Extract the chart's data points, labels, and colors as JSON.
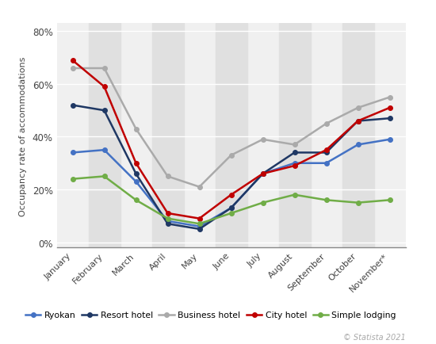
{
  "months": [
    "January",
    "February",
    "March",
    "April",
    "May",
    "June",
    "July",
    "August",
    "September",
    "October",
    "November*"
  ],
  "series": {
    "Ryokan": [
      0.34,
      0.35,
      0.23,
      0.08,
      0.06,
      0.13,
      0.26,
      0.3,
      0.3,
      0.37,
      0.39
    ],
    "Resort hotel": [
      0.52,
      0.5,
      0.26,
      0.07,
      0.05,
      0.13,
      0.26,
      0.34,
      0.34,
      0.46,
      0.47
    ],
    "Business hotel": [
      0.66,
      0.66,
      0.43,
      0.25,
      0.21,
      0.33,
      0.39,
      0.37,
      0.45,
      0.51,
      0.55
    ],
    "City hotel": [
      0.69,
      0.59,
      0.3,
      0.11,
      0.09,
      0.18,
      0.26,
      0.29,
      0.35,
      0.46,
      0.51
    ],
    "Simple lodging": [
      0.24,
      0.25,
      0.16,
      0.09,
      0.07,
      0.11,
      0.15,
      0.18,
      0.16,
      0.15,
      0.16
    ]
  },
  "colors": {
    "Ryokan": "#4472C4",
    "Resort hotel": "#1F3864",
    "Business hotel": "#AAAAAA",
    "City hotel": "#C00000",
    "Simple lodging": "#70AD47"
  },
  "ylabel": "Occupancy rate of accommodations",
  "yticks": [
    0.0,
    0.2,
    0.4,
    0.6,
    0.8
  ],
  "ytick_labels": [
    "0%",
    "20%",
    "40%",
    "60%",
    "80%"
  ],
  "background_color": "#ffffff",
  "plot_bg_color": "#f0f0f0",
  "stripe_color": "#e0e0e0",
  "watermark": "© Statista 2021"
}
